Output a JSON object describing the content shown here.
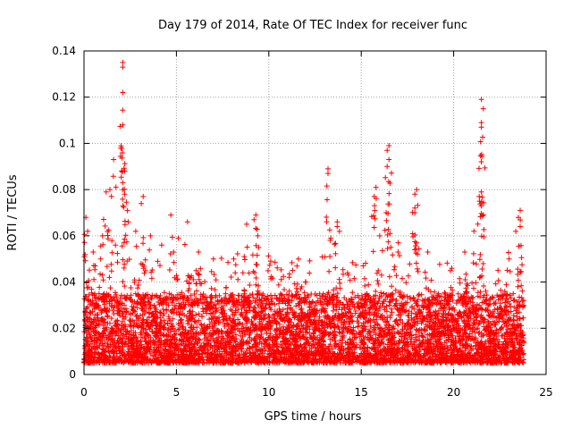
{
  "chart_data": {
    "type": "scatter",
    "title": "Day 179 of 2014, Rate Of TEC Index for receiver func",
    "xlabel": "GPS time / hours",
    "ylabel": "ROTI / TECUs",
    "xlim": [
      0,
      25
    ],
    "ylim": [
      0,
      0.14
    ],
    "xticks": [
      0,
      5,
      10,
      15,
      20,
      25
    ],
    "yticks": [
      0,
      0.02,
      0.04,
      0.06,
      0.08,
      0.1,
      0.12,
      0.14
    ],
    "xtick_labels": [
      "0",
      "5",
      "10",
      "15",
      "20",
      "25"
    ],
    "ytick_labels": [
      "0",
      "0.02",
      "0.04",
      "0.06",
      "0.08",
      "0.1",
      "0.12",
      "0.14"
    ],
    "grid": true,
    "marker": "+",
    "color": "#ff0000",
    "series": [
      {
        "name": "ROTI",
        "baseline_band": [
          0.005,
          0.035
        ],
        "points": [
          [
            2.1,
            0.135
          ],
          [
            2.1,
            0.133
          ],
          [
            2.1,
            0.122
          ],
          [
            2.1,
            0.108
          ],
          [
            1.6,
            0.093
          ],
          [
            2.2,
            0.088
          ],
          [
            2.1,
            0.083
          ],
          [
            1.4,
            0.08
          ],
          [
            1.2,
            0.079
          ],
          [
            2.2,
            0.078
          ],
          [
            0.1,
            0.068
          ],
          [
            3.2,
            0.077
          ],
          [
            3.1,
            0.074
          ],
          [
            4.7,
            0.069
          ],
          [
            5.6,
            0.066
          ],
          [
            9.3,
            0.069
          ],
          [
            9.2,
            0.067
          ],
          [
            8.8,
            0.065
          ],
          [
            13.2,
            0.089
          ],
          [
            13.2,
            0.087
          ],
          [
            13.7,
            0.066
          ],
          [
            13.7,
            0.064
          ],
          [
            16.5,
            0.099
          ],
          [
            16.4,
            0.097
          ],
          [
            16.5,
            0.093
          ],
          [
            16.4,
            0.09
          ],
          [
            15.8,
            0.081
          ],
          [
            15.7,
            0.077
          ],
          [
            18.0,
            0.08
          ],
          [
            17.9,
            0.078
          ],
          [
            17.9,
            0.072
          ],
          [
            17.9,
            0.07
          ],
          [
            21.5,
            0.119
          ],
          [
            21.6,
            0.115
          ],
          [
            21.5,
            0.109
          ],
          [
            21.5,
            0.107
          ],
          [
            21.5,
            0.079
          ],
          [
            21.4,
            0.075
          ],
          [
            21.5,
            0.073
          ],
          [
            23.6,
            0.071
          ],
          [
            23.5,
            0.068
          ],
          [
            23.6,
            0.064
          ],
          [
            9.4,
            0.06
          ],
          [
            11.6,
            0.05
          ],
          [
            10.1,
            0.049
          ],
          [
            7.0,
            0.05
          ],
          [
            0.2,
            0.062
          ],
          [
            0.5,
            0.053
          ],
          [
            1.0,
            0.06
          ],
          [
            3.6,
            0.06
          ],
          [
            2.8,
            0.062
          ],
          [
            4.2,
            0.056
          ],
          [
            5.1,
            0.059
          ],
          [
            6.2,
            0.053
          ],
          [
            8.1,
            0.05
          ],
          [
            8.6,
            0.044
          ],
          [
            12.0,
            0.04
          ],
          [
            14.3,
            0.043
          ],
          [
            15.1,
            0.047
          ],
          [
            17.0,
            0.057
          ],
          [
            18.6,
            0.053
          ],
          [
            19.9,
            0.046
          ],
          [
            20.6,
            0.053
          ],
          [
            21.1,
            0.062
          ],
          [
            22.4,
            0.045
          ],
          [
            23.0,
            0.05
          ],
          [
            16.0,
            0.06
          ],
          [
            16.6,
            0.055
          ],
          [
            1.7,
            0.056
          ],
          [
            2.4,
            0.066
          ]
        ],
        "seed": 179
      }
    ]
  }
}
